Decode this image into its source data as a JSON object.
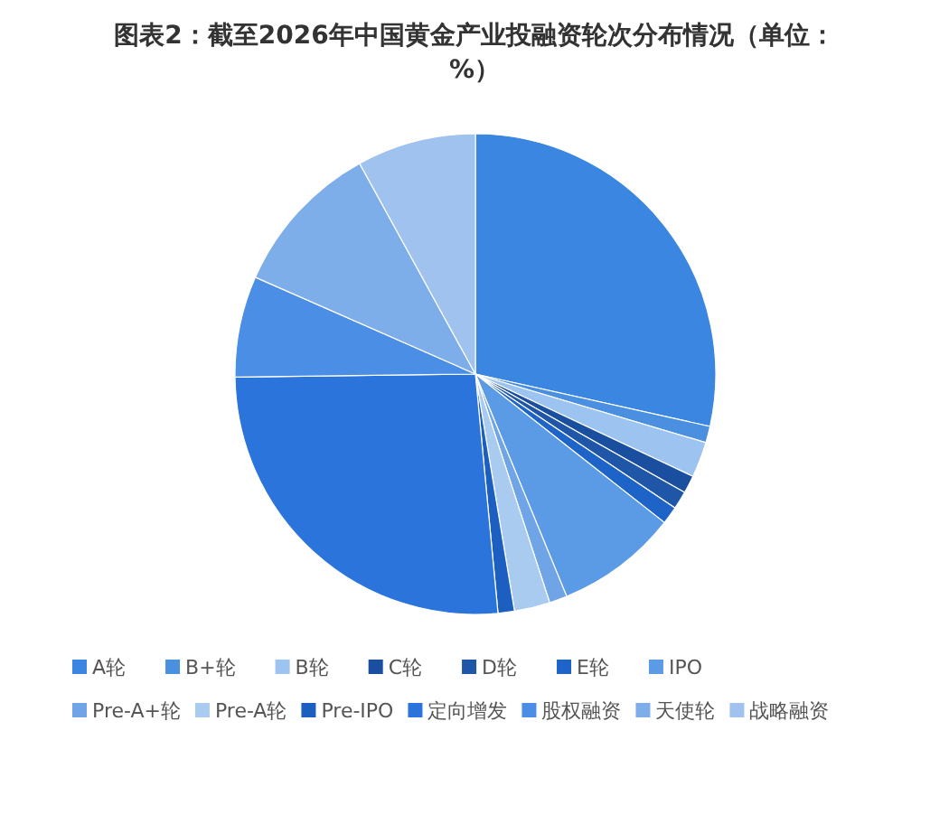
{
  "chart_data": {
    "type": "pie",
    "title": "图表2：截至2026年中国黄金产业投融资轮次分布情况（单位：%）",
    "categories": [
      "A轮",
      "B+轮",
      "B轮",
      "C轮",
      "D轮",
      "E轮",
      "IPO",
      "Pre-A+轮",
      "Pre-A轮",
      "Pre-IPO",
      "定向增发",
      "股权融资",
      "天使轮",
      "战略融资"
    ],
    "values": [
      28.5,
      1.1,
      2.4,
      1.2,
      1.2,
      1.2,
      8.2,
      1.2,
      2.4,
      1.1,
      26.3,
      6.8,
      10.4,
      8.0
    ],
    "colors": [
      "#3b86e0",
      "#4a8fe0",
      "#9dc3f0",
      "#1a4fa0",
      "#1f56a8",
      "#1e64c8",
      "#5b9be6",
      "#6fa5e6",
      "#aacbf0",
      "#1c5fc0",
      "#2a74dc",
      "#4a8ee6",
      "#7eaeea",
      "#9fc2ef"
    ],
    "legend": "bottom"
  }
}
